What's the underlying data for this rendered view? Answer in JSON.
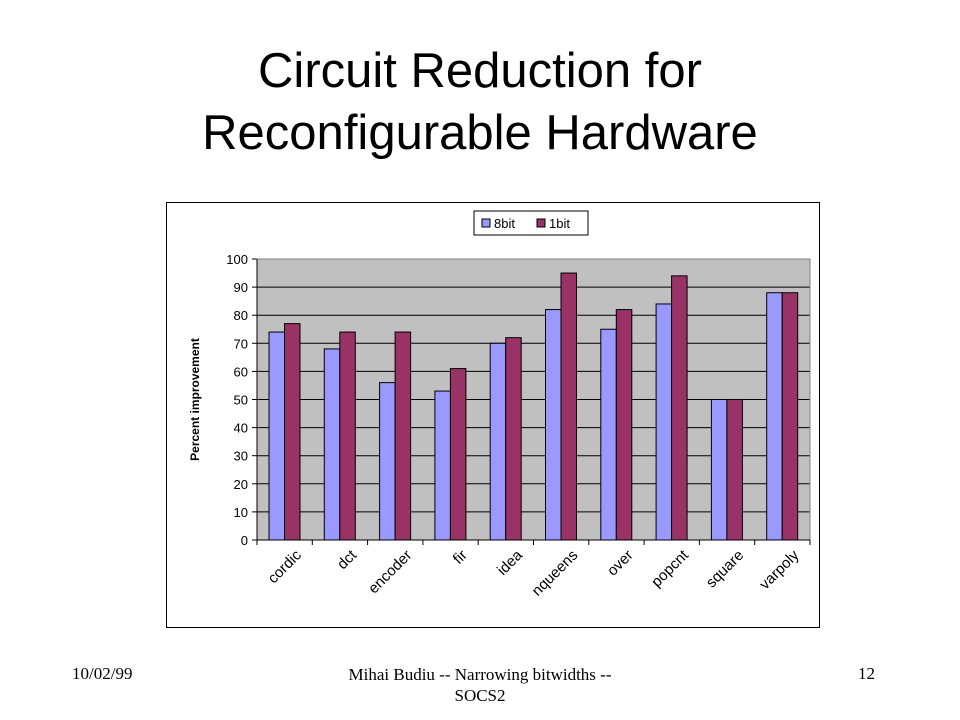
{
  "slide": {
    "title_line1": "Circuit Reduction for",
    "title_line2": "Reconfigurable Hardware"
  },
  "footer": {
    "date": "10/02/99",
    "center": "Mihai Budiu -- Narrowing bitwidths -- SOCS2",
    "page": "12"
  },
  "chart_data": {
    "type": "bar",
    "categories": [
      "cordic",
      "dct",
      "encoder",
      "fir",
      "idea",
      "nqueens",
      "over",
      "popcnt",
      "square",
      "varpoly"
    ],
    "series": [
      {
        "name": "8bit",
        "values": [
          74,
          68,
          56,
          53,
          70,
          82,
          75,
          84,
          50,
          88
        ]
      },
      {
        "name": "1bit",
        "values": [
          77,
          74,
          74,
          61,
          72,
          95,
          82,
          94,
          50,
          88
        ]
      }
    ],
    "xlabel": "",
    "ylabel": "Percent improvement",
    "ylim": [
      0,
      100
    ],
    "yticks": [
      0,
      10,
      20,
      30,
      40,
      50,
      60,
      70,
      80,
      90,
      100
    ],
    "grid": true,
    "legend_position": "top",
    "colors": {
      "8bit": "#9999ff",
      "1bit": "#993366",
      "plot_background": "#c0c0c0"
    }
  }
}
